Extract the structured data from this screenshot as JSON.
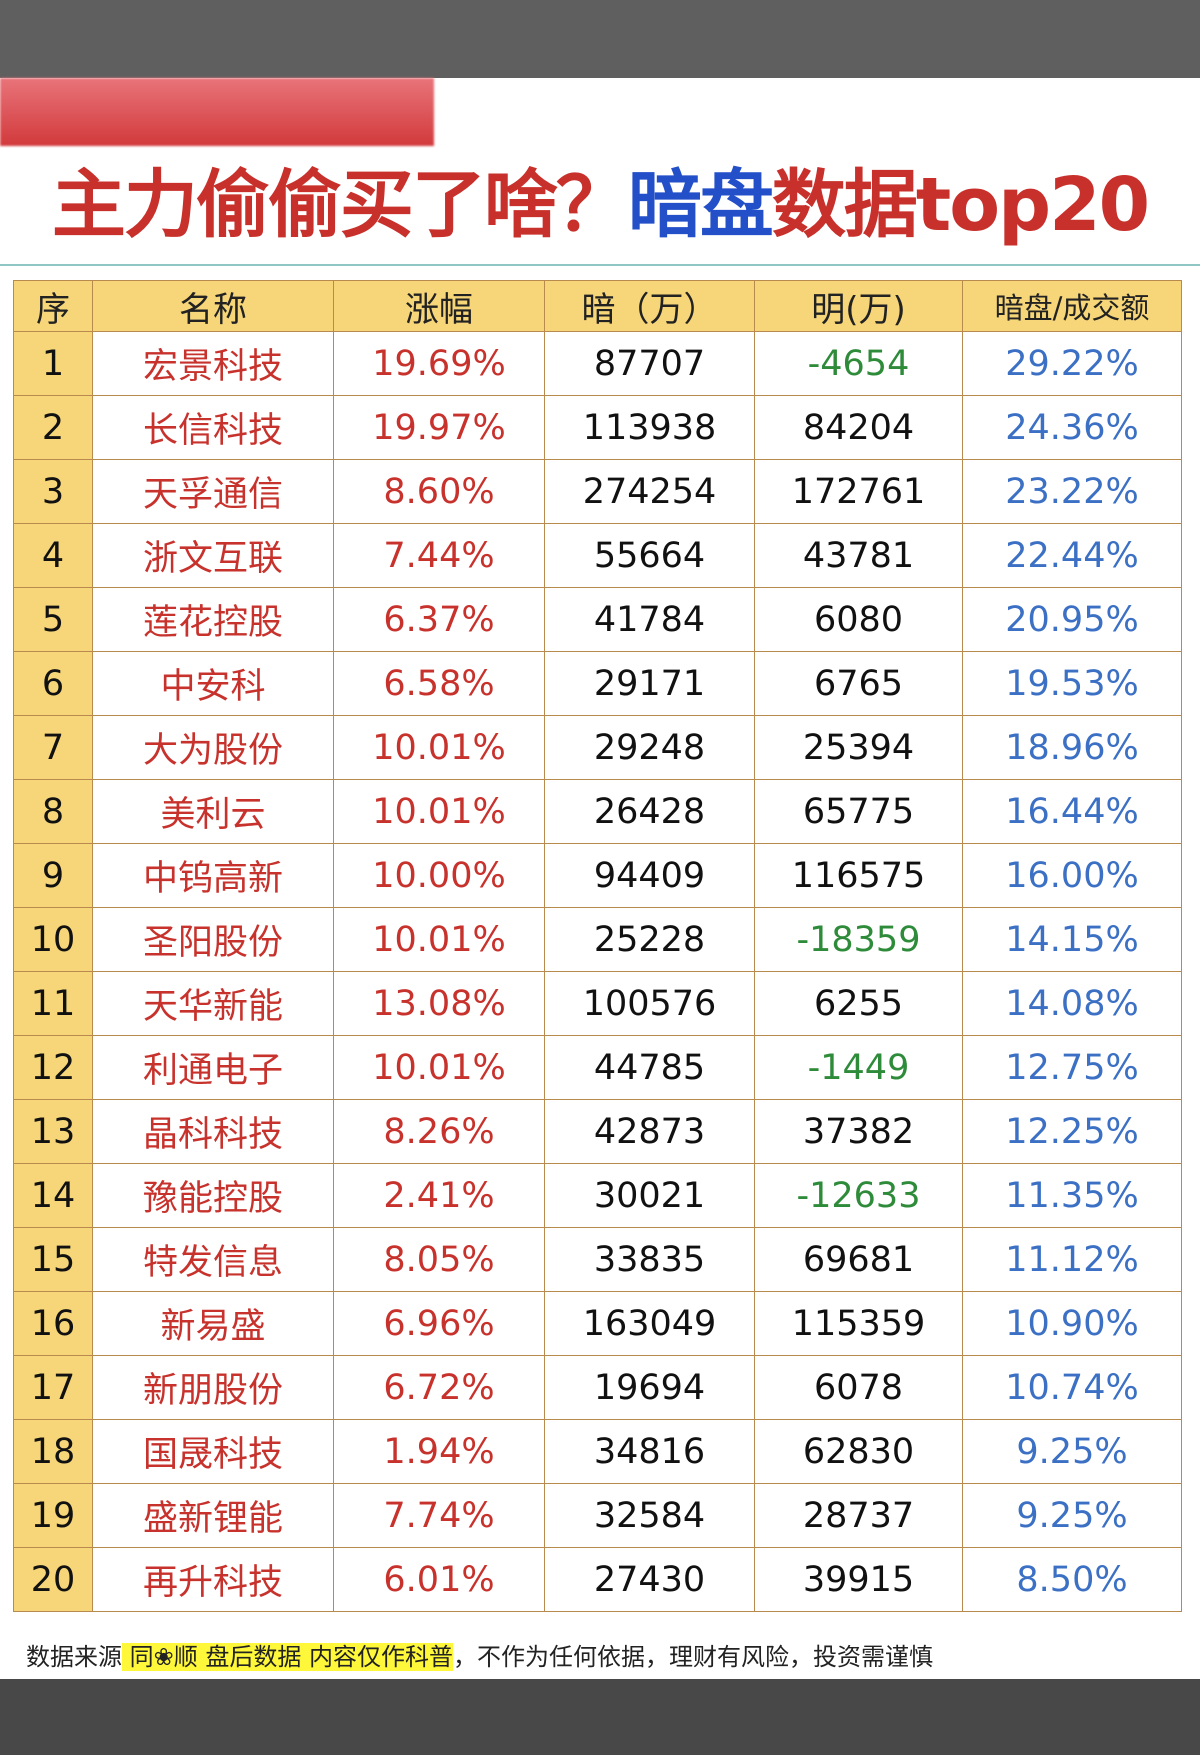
{
  "title": {
    "part1": "主力偷偷买了啥？",
    "part2": "暗盘",
    "part3": "数据top20"
  },
  "colors": {
    "red": "#c8322c",
    "blue": "#3b70c4",
    "green": "#2e8b3a",
    "header_bg": "#f6d678"
  },
  "table": {
    "headers": [
      "序",
      "名称",
      "涨幅",
      "暗（万）",
      "明(万)",
      "暗盘/成交额"
    ],
    "rows": [
      [
        "1",
        "宏景科技",
        "19.69%",
        "87707",
        "-4654",
        "29.22%"
      ],
      [
        "2",
        "长信科技",
        "19.97%",
        "113938",
        "84204",
        "24.36%"
      ],
      [
        "3",
        "天孚通信",
        "8.60%",
        "274254",
        "172761",
        "23.22%"
      ],
      [
        "4",
        "浙文互联",
        "7.44%",
        "55664",
        "43781",
        "22.44%"
      ],
      [
        "5",
        "莲花控股",
        "6.37%",
        "41784",
        "6080",
        "20.95%"
      ],
      [
        "6",
        "中安科",
        "6.58%",
        "29171",
        "6765",
        "19.53%"
      ],
      [
        "7",
        "大为股份",
        "10.01%",
        "29248",
        "25394",
        "18.96%"
      ],
      [
        "8",
        "美利云",
        "10.01%",
        "26428",
        "65775",
        "16.44%"
      ],
      [
        "9",
        "中钨高新",
        "10.00%",
        "94409",
        "116575",
        "16.00%"
      ],
      [
        "10",
        "圣阳股份",
        "10.01%",
        "25228",
        "-18359",
        "14.15%"
      ],
      [
        "11",
        "天华新能",
        "13.08%",
        "100576",
        "6255",
        "14.08%"
      ],
      [
        "12",
        "利通电子",
        "10.01%",
        "44785",
        "-1449",
        "12.75%"
      ],
      [
        "13",
        "晶科科技",
        "8.26%",
        "42873",
        "37382",
        "12.25%"
      ],
      [
        "14",
        "豫能控股",
        "2.41%",
        "30021",
        "-12633",
        "11.35%"
      ],
      [
        "15",
        "特发信息",
        "8.05%",
        "33835",
        "69681",
        "11.12%"
      ],
      [
        "16",
        "新易盛",
        "6.96%",
        "163049",
        "115359",
        "10.90%"
      ],
      [
        "17",
        "新朋股份",
        "6.72%",
        "19694",
        "6078",
        "10.74%"
      ],
      [
        "18",
        "国晟科技",
        "1.94%",
        "34816",
        "62830",
        "9.25%"
      ],
      [
        "19",
        "盛新锂能",
        "7.74%",
        "32584",
        "28737",
        "9.25%"
      ],
      [
        "20",
        "再升科技",
        "6.01%",
        "27430",
        "39915",
        "8.50%"
      ]
    ]
  },
  "footer": {
    "prefix": "数据来源",
    "highlight": " 同❀顺  盘后数据  内容仅作科普",
    "suffix": "，不作为任何依据，理财有风险，投资需谨慎"
  }
}
